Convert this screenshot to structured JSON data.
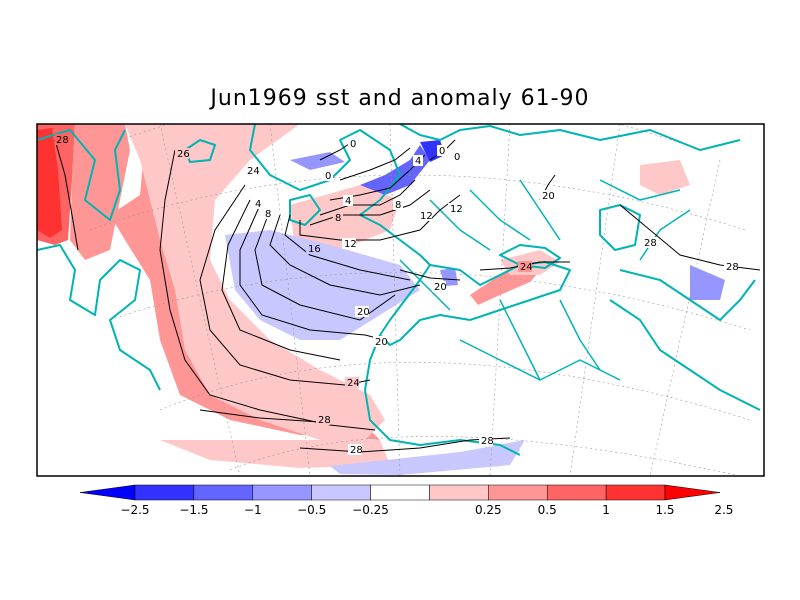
{
  "title": "Jun1969 sst and anomaly 61-90",
  "colorbar": {
    "tick_labels": [
      "-2.5",
      "-1.5",
      "-1",
      "-0.5",
      "-0.25",
      "0.25",
      "0.5",
      "1",
      "1.5",
      "2.5"
    ],
    "colors": [
      "#0000ff",
      "#3232ff",
      "#6464ff",
      "#9696ff",
      "#c8c8ff",
      "#ffffff",
      "#ffc8c8",
      "#ff9696",
      "#ff6464",
      "#ff3232",
      "#ff0000"
    ]
  },
  "colors": {
    "coastline": "#00b4b4",
    "contour": "#000000",
    "frame": "#000000"
  },
  "contour_labels": [
    "28",
    "26",
    "24",
    "20",
    "16",
    "12",
    "8",
    "4",
    "0",
    "28",
    "28",
    "24",
    "28",
    "20",
    "20",
    "20",
    "24",
    "28",
    "28",
    "12",
    "12",
    "8",
    "4",
    "0",
    "0",
    "0",
    "4",
    "8"
  ]
}
